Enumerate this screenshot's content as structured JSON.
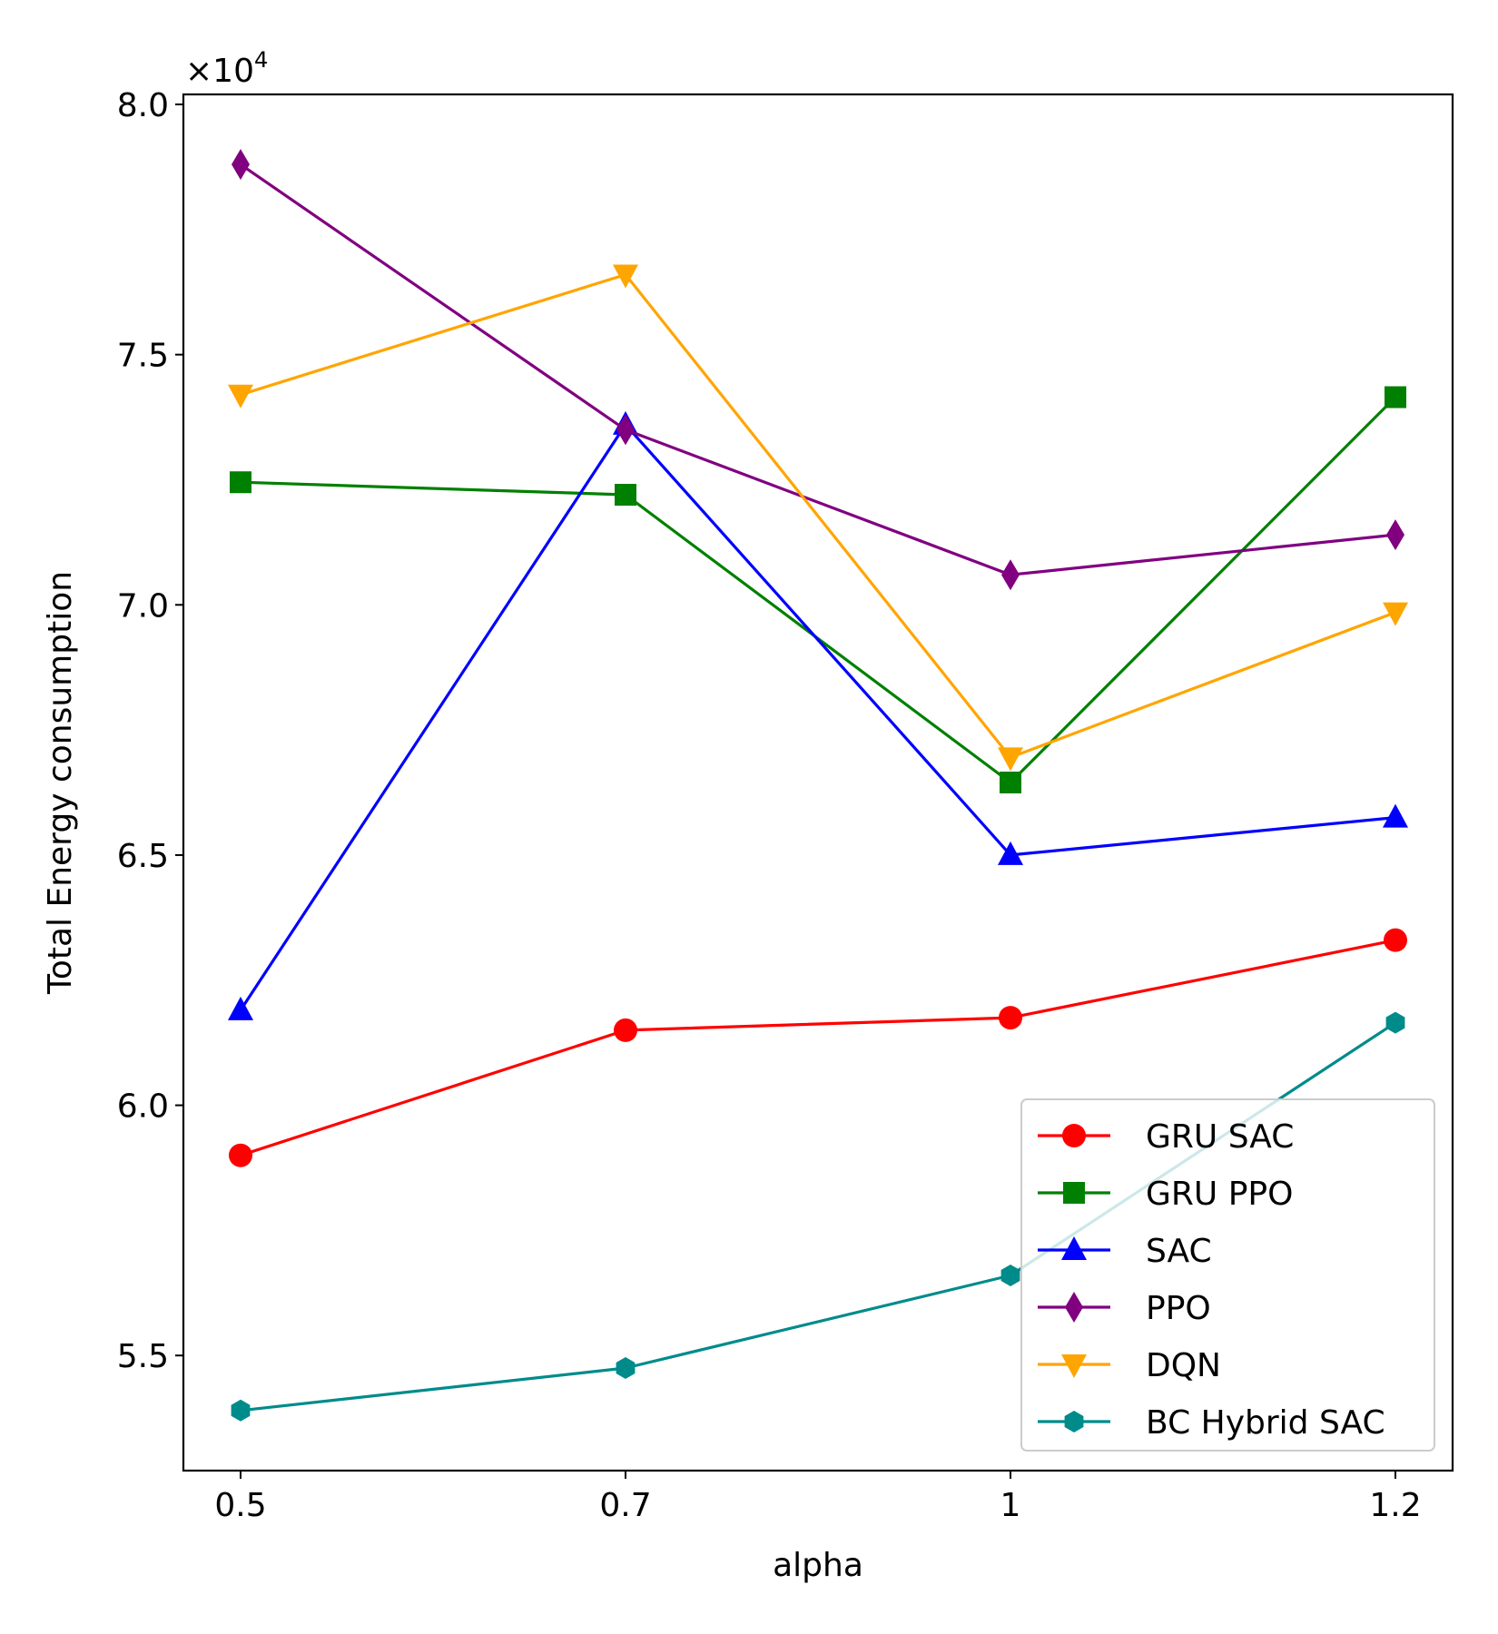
{
  "chart_data": {
    "type": "line",
    "title": "",
    "xlabel": "alpha",
    "ylabel": "Total Energy consumption",
    "y_offset_label": "×10",
    "y_offset_exponent": "4",
    "y_multiplier": 10000,
    "categories": [
      "0.5",
      "0.7",
      "1",
      "1.2"
    ],
    "ylim": [
      5.27,
      8.02
    ],
    "yticks": [
      "5.5",
      "6.0",
      "6.5",
      "7.0",
      "7.5",
      "8.0"
    ],
    "ytick_values": [
      5.5,
      6.0,
      6.5,
      7.0,
      7.5,
      8.0
    ],
    "grid": false,
    "legend_position": "lower-right",
    "series": [
      {
        "name": "GRU SAC",
        "color": "#ff0000",
        "marker": "circle",
        "values": [
          5.9,
          6.15,
          6.175,
          6.33
        ]
      },
      {
        "name": "GRU PPO",
        "color": "#008000",
        "marker": "square",
        "values": [
          7.245,
          7.22,
          6.645,
          7.415
        ]
      },
      {
        "name": "SAC",
        "color": "#0000ff",
        "marker": "triangle-up",
        "values": [
          6.19,
          7.36,
          6.5,
          6.575
        ]
      },
      {
        "name": "PPO",
        "color": "#800080",
        "marker": "diamond",
        "values": [
          7.88,
          7.35,
          7.06,
          7.14
        ]
      },
      {
        "name": "DQN",
        "color": "#ffa500",
        "marker": "triangle-down",
        "values": [
          7.42,
          7.66,
          6.695,
          6.985
        ]
      },
      {
        "name": "BC Hybrid SAC",
        "color": "#008b8b",
        "marker": "hexagon",
        "values": [
          5.39,
          5.475,
          5.66,
          6.165
        ]
      }
    ]
  }
}
